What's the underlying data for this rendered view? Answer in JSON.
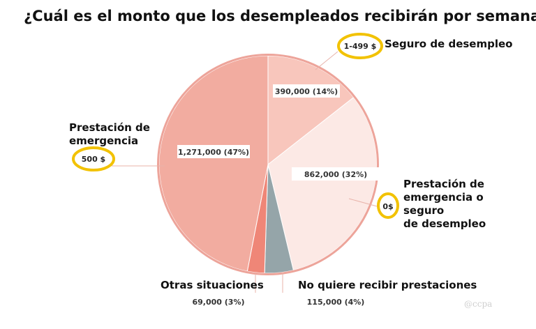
{
  "chart_data": {
    "type": "pie",
    "title": "¿Cuál es el monto que los desempleados recibirán por semana?",
    "slices": [
      {
        "category": "Seguro de desempleo",
        "amount": "1-499 $",
        "value": 390000,
        "percent": 14,
        "label": "390,000 (14%)",
        "color": "#f8c6bc"
      },
      {
        "category": "Prestación de emergencia o seguro de desempleo",
        "amount": "0$",
        "value": 862000,
        "percent": 32,
        "label": "862,000 (32%)",
        "color": "#fce9e5"
      },
      {
        "category": "No quiere recibir prestaciones",
        "amount": "",
        "value": 115000,
        "percent": 4,
        "label": "115,000 (4%)",
        "color": "#95a5a9"
      },
      {
        "category": "Otras situaciones",
        "amount": "",
        "value": 69000,
        "percent": 3,
        "label": "69,000 (3%)",
        "color": "#ef8677"
      },
      {
        "category": "Prestación de emergencia",
        "amount": "500 $",
        "value": 1271000,
        "percent": 47,
        "label": "1,271,000 (47%)",
        "color": "#f2aca0"
      }
    ],
    "category_lines": {
      "seguro": [
        "Seguro de desempleo"
      ],
      "emergencia_o_seguro": [
        "Prestación de",
        "emergencia o",
        "seguro",
        "de desempleo"
      ],
      "no_quiere": [
        "No quiere recibir prestaciones"
      ],
      "otras": [
        "Otras situaciones"
      ],
      "emergencia": [
        "Prestación de",
        "emergencia"
      ]
    },
    "watermark": "@ccpa",
    "highlight_color": "#f2c200",
    "outline_color": "#eda49a"
  }
}
